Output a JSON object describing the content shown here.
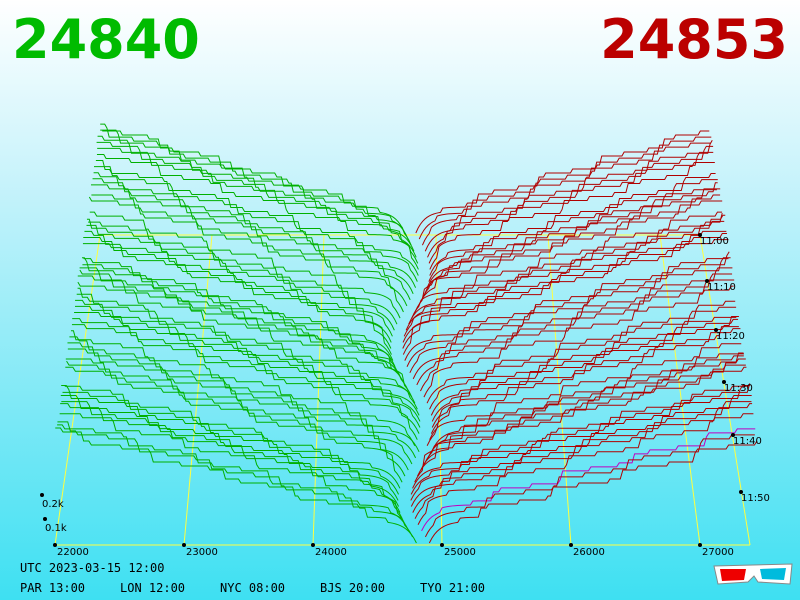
{
  "header": {
    "bid": "24840",
    "ask": "24853"
  },
  "price_axis": {
    "ticks": [
      "22000",
      "23000",
      "24000",
      "25000",
      "26000",
      "27000"
    ]
  },
  "depth_axis": {
    "ticks": [
      "0.2k",
      "0.1k"
    ]
  },
  "time_axis": {
    "ticks": [
      "11:00",
      "11:10",
      "11:20",
      "11:30",
      "11:40",
      "11:50"
    ]
  },
  "footer": {
    "utc": "UTC 2023-03-15 12:00",
    "clocks": [
      "PAR 13:00",
      "LON 12:00",
      "NYC 08:00",
      "BJS 20:00",
      "TYO 21:00"
    ]
  }
}
